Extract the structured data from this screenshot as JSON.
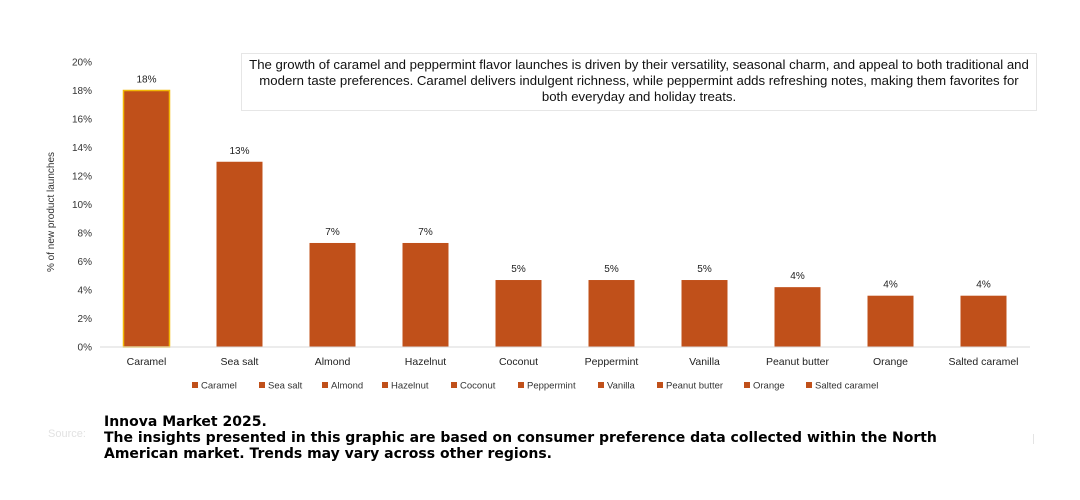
{
  "chart_data": {
    "type": "bar",
    "categories": [
      "Caramel",
      "Sea salt",
      "Almond",
      "Hazelnut",
      "Coconut",
      "Peppermint",
      "Vanilla",
      "Peanut butter",
      "Orange",
      "Salted caramel"
    ],
    "values": [
      18,
      13,
      7.3,
      7.3,
      4.7,
      4.7,
      4.7,
      4.2,
      3.6,
      3.6
    ],
    "data_labels": [
      "18%",
      "13%",
      "7%",
      "7%",
      "5%",
      "5%",
      "5%",
      "4%",
      "4%",
      "4%"
    ],
    "xlabel": "",
    "ylabel": "% of new product launches",
    "ylim": [
      0,
      20
    ],
    "yticks": [
      "0%",
      "2%",
      "4%",
      "6%",
      "8%",
      "10%",
      "12%",
      "14%",
      "16%",
      "18%",
      "20%"
    ],
    "grid": false,
    "legend": "bottom",
    "colors": {
      "bar": "#c0501a",
      "highlight_outline": "#f2b705"
    }
  },
  "callout": "The growth of caramel and peppermint flavor launches is driven by their versatility, seasonal charm, and appeal to both traditional and modern taste preferences. Caramel delivers indulgent richness, while peppermint adds refreshing notes, making them favorites for both everyday and holiday treats.",
  "source_label": "Source:",
  "source_lines": [
    "Innova Market 2025.",
    "The insights presented in this graphic are based on consumer preference data collected within the North",
    "American market. Trends may vary across other regions."
  ]
}
